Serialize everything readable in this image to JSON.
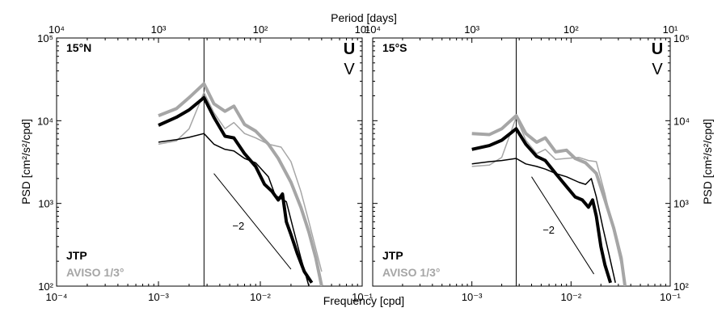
{
  "figure": {
    "top_axis_label": "Period [days]",
    "bottom_axis_label": "Frequency [cpd]",
    "y_axis_label_left": "PSD [cm²/s²/cpd]",
    "y_axis_label_right": "PSD [cm²/s²/cpd]",
    "slope_label": "−2",
    "legend": {
      "jtp": "JTP",
      "aviso": "AVISO 1/3°"
    },
    "component_labels": {
      "u": "U",
      "v": "V"
    },
    "colors": {
      "jtp": "#000000",
      "aviso": "#a6a6a6",
      "background": "#ffffff",
      "frame": "#2b2b2b"
    }
  },
  "chart_data": [
    {
      "type": "line",
      "title": "15°N",
      "xscale": "log",
      "yscale": "log",
      "xlabel": "Frequency [cpd]",
      "ylabel": "PSD [cm²/s²/cpd]",
      "xlim": [
        0.0001,
        0.1
      ],
      "ylim": [
        100,
        100000
      ],
      "xtick_values": [
        0.0001,
        0.001,
        0.01,
        0.1
      ],
      "xtick_labels": [
        "10⁻⁴",
        "10⁻³",
        "10⁻²",
        "10⁻¹"
      ],
      "ytick_values": [
        100,
        1000,
        10000,
        100000
      ],
      "ytick_labels": [
        "10²",
        "10³",
        "10⁴",
        "10⁵"
      ],
      "top_axis": {
        "label": "Period [days]",
        "tick_values_days": [
          10000,
          1000,
          100,
          10
        ],
        "tick_labels": [
          "10⁴",
          "10³",
          "10²",
          "10¹"
        ]
      },
      "vertical_line_x": 0.0028,
      "slope_line": {
        "label": "−2",
        "x": [
          0.0035,
          0.02
        ],
        "y": [
          2300,
          160
        ]
      },
      "series": [
        {
          "name": "AVISO 1/3°",
          "component": "U",
          "color": "#a6a6a6",
          "width": "thick",
          "x": [
            0.001,
            0.0015,
            0.002,
            0.0028,
            0.0035,
            0.0045,
            0.0055,
            0.007,
            0.009,
            0.012,
            0.015,
            0.02,
            0.025,
            0.03,
            0.035,
            0.04
          ],
          "y": [
            11500,
            14000,
            19000,
            28000,
            16000,
            13000,
            15000,
            9000,
            7500,
            5200,
            3500,
            1800,
            900,
            450,
            220,
            100
          ]
        },
        {
          "name": "AVISO 1/3°",
          "component": "V",
          "color": "#a6a6a6",
          "width": "thin",
          "x": [
            0.001,
            0.0015,
            0.002,
            0.0028,
            0.0035,
            0.0045,
            0.0055,
            0.007,
            0.009,
            0.012,
            0.016,
            0.02,
            0.025,
            0.03,
            0.04
          ],
          "y": [
            5200,
            5700,
            8000,
            22000,
            12500,
            8000,
            9500,
            7000,
            6200,
            5200,
            4800,
            3200,
            1400,
            600,
            150
          ]
        },
        {
          "name": "JTP",
          "component": "U",
          "color": "#000000",
          "width": "thick",
          "x": [
            0.001,
            0.0015,
            0.002,
            0.0028,
            0.0035,
            0.0045,
            0.0055,
            0.007,
            0.009,
            0.011,
            0.013,
            0.015,
            0.0165,
            0.018,
            0.02,
            0.023,
            0.027,
            0.032
          ],
          "y": [
            8800,
            11000,
            13500,
            19000,
            11000,
            6500,
            6200,
            4000,
            2800,
            1700,
            1400,
            1100,
            1300,
            600,
            420,
            250,
            150,
            110
          ]
        },
        {
          "name": "JTP",
          "component": "V",
          "color": "#000000",
          "width": "thin",
          "x": [
            0.001,
            0.0015,
            0.002,
            0.0028,
            0.0035,
            0.0045,
            0.0055,
            0.007,
            0.009,
            0.012,
            0.014,
            0.018,
            0.021,
            0.025,
            0.03
          ],
          "y": [
            5500,
            5900,
            6300,
            7000,
            5200,
            4500,
            4300,
            3500,
            3100,
            2100,
            1250,
            1050,
            500,
            220,
            100
          ]
        }
      ]
    },
    {
      "type": "line",
      "title": "15°S",
      "xscale": "log",
      "yscale": "log",
      "xlabel": "Frequency [cpd]",
      "ylabel": "PSD [cm²/s²/cpd]",
      "xlim": [
        0.0001,
        0.1
      ],
      "ylim": [
        100,
        100000
      ],
      "xtick_values": [
        0.0001,
        0.001,
        0.01,
        0.1
      ],
      "xtick_labels": [
        "10⁻⁴",
        "10⁻³",
        "10⁻²",
        "10⁻¹"
      ],
      "ytick_values": [
        100,
        1000,
        10000,
        100000
      ],
      "ytick_labels": [
        "10²",
        "10³",
        "10⁴",
        "10⁵"
      ],
      "top_axis": {
        "label": "Period [days]",
        "tick_values_days": [
          10000,
          1000,
          100,
          10
        ],
        "tick_labels": [
          "10⁴",
          "10³",
          "10²",
          "10¹"
        ]
      },
      "vertical_line_x": 0.0028,
      "slope_line": {
        "label": "−2",
        "x": [
          0.004,
          0.017
        ],
        "y": [
          2100,
          140
        ]
      },
      "series": [
        {
          "name": "AVISO 1/3°",
          "component": "U",
          "color": "#a6a6a6",
          "width": "thick",
          "x": [
            0.001,
            0.0015,
            0.002,
            0.0028,
            0.0035,
            0.0045,
            0.0055,
            0.007,
            0.009,
            0.011,
            0.014,
            0.018,
            0.022,
            0.027,
            0.032,
            0.035
          ],
          "y": [
            7000,
            6800,
            8000,
            11500,
            7000,
            5500,
            6200,
            4200,
            4400,
            3500,
            3100,
            2300,
            1100,
            500,
            220,
            100
          ]
        },
        {
          "name": "AVISO 1/3°",
          "component": "V",
          "color": "#a6a6a6",
          "width": "thin",
          "x": [
            0.001,
            0.0015,
            0.002,
            0.0028,
            0.0035,
            0.0045,
            0.0055,
            0.007,
            0.009,
            0.012,
            0.015,
            0.018,
            0.022,
            0.027,
            0.033
          ],
          "y": [
            2800,
            2900,
            3600,
            11000,
            5800,
            4000,
            4500,
            3400,
            3500,
            3600,
            3300,
            3200,
            1300,
            450,
            160
          ]
        },
        {
          "name": "JTP",
          "component": "U",
          "color": "#000000",
          "width": "thick",
          "x": [
            0.001,
            0.0015,
            0.002,
            0.0028,
            0.0035,
            0.0045,
            0.0055,
            0.007,
            0.009,
            0.011,
            0.013,
            0.015,
            0.0165,
            0.018,
            0.02,
            0.022,
            0.025
          ],
          "y": [
            4500,
            5000,
            5800,
            8000,
            5200,
            3700,
            3300,
            2300,
            1600,
            1200,
            1100,
            900,
            1100,
            700,
            300,
            180,
            110
          ]
        },
        {
          "name": "JTP",
          "component": "V",
          "color": "#000000",
          "width": "thin",
          "x": [
            0.001,
            0.0015,
            0.002,
            0.0028,
            0.0035,
            0.0045,
            0.0055,
            0.007,
            0.009,
            0.012,
            0.014,
            0.016,
            0.018,
            0.021,
            0.024,
            0.028
          ],
          "y": [
            3000,
            3200,
            3300,
            3500,
            3000,
            2800,
            2600,
            2300,
            2100,
            1800,
            1700,
            2000,
            1200,
            500,
            250,
            110
          ]
        }
      ]
    }
  ]
}
